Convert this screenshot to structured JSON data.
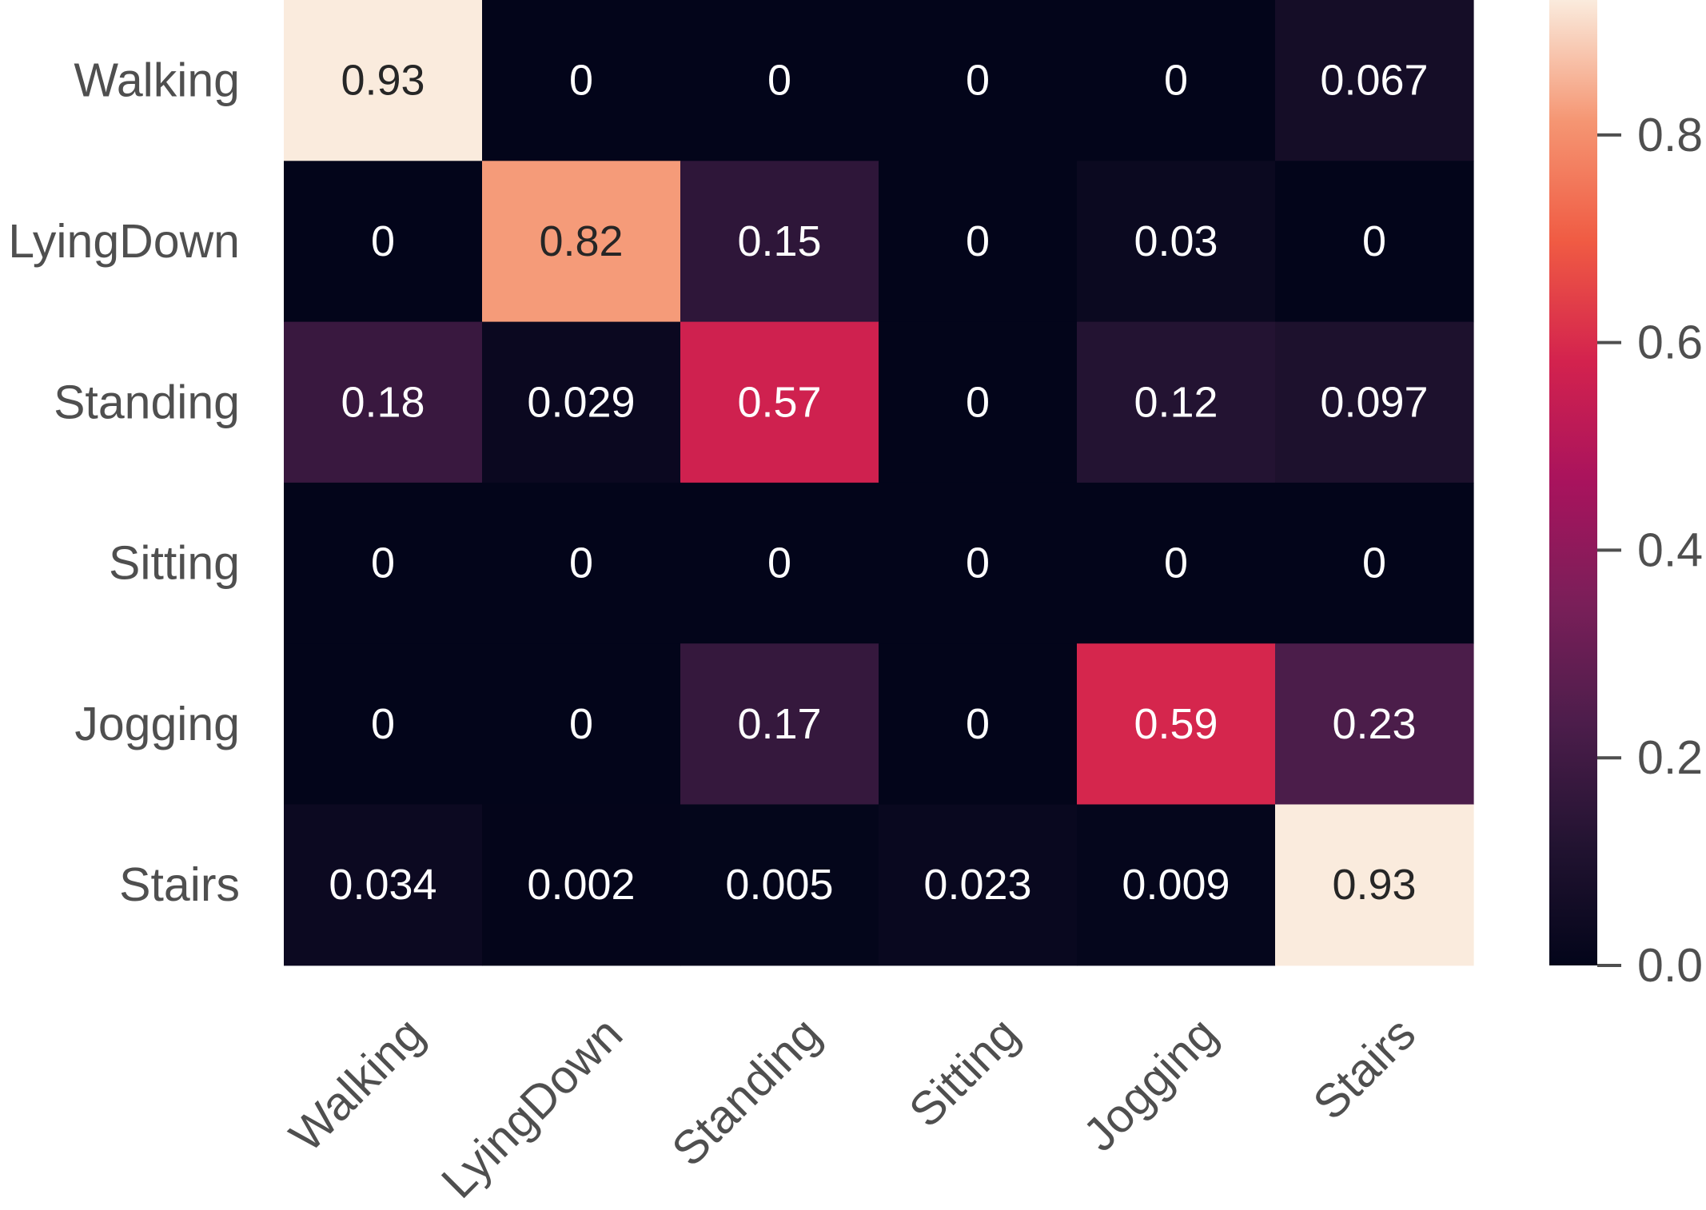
{
  "chart_data": {
    "type": "heatmap",
    "title": "",
    "xlabel": "",
    "ylabel": "",
    "x_categories": [
      "Walking",
      "LyingDown",
      "Standing",
      "Sitting",
      "Jogging",
      "Stairs"
    ],
    "y_categories": [
      "Walking",
      "LyingDown",
      "Standing",
      "Sitting",
      "Jogging",
      "Stairs"
    ],
    "values": [
      [
        0.93,
        0,
        0,
        0,
        0,
        0.067
      ],
      [
        0,
        0.82,
        0.15,
        0,
        0.03,
        0
      ],
      [
        0.18,
        0.029,
        0.57,
        0,
        0.12,
        0.097
      ],
      [
        0,
        0,
        0,
        0,
        0,
        0
      ],
      [
        0,
        0,
        0.17,
        0,
        0.59,
        0.23
      ],
      [
        0.034,
        0.002,
        0.005,
        0.023,
        0.009,
        0.93
      ]
    ],
    "cell_labels": [
      [
        "0.93",
        "0",
        "0",
        "0",
        "0",
        "0.067"
      ],
      [
        "0",
        "0.82",
        "0.15",
        "0",
        "0.03",
        "0"
      ],
      [
        "0.18",
        "0.029",
        "0.57",
        "0",
        "0.12",
        "0.097"
      ],
      [
        "0",
        "0",
        "0",
        "0",
        "0",
        "0"
      ],
      [
        "0",
        "0",
        "0.17",
        "0",
        "0.59",
        "0.23"
      ],
      [
        "0.034",
        "0.002",
        "0.005",
        "0.023",
        "0.009",
        "0.93"
      ]
    ],
    "colorbar": {
      "range": [
        0,
        0.93
      ],
      "ticks": [
        0.0,
        0.2,
        0.4,
        0.6,
        0.8
      ],
      "tick_labels": [
        "0.0",
        "0.2",
        "0.4",
        "0.6",
        "0.8"
      ],
      "colormap": "rocket"
    },
    "x_tick_rotation_deg": 45,
    "grid": false,
    "legend": "colorbar-right"
  }
}
